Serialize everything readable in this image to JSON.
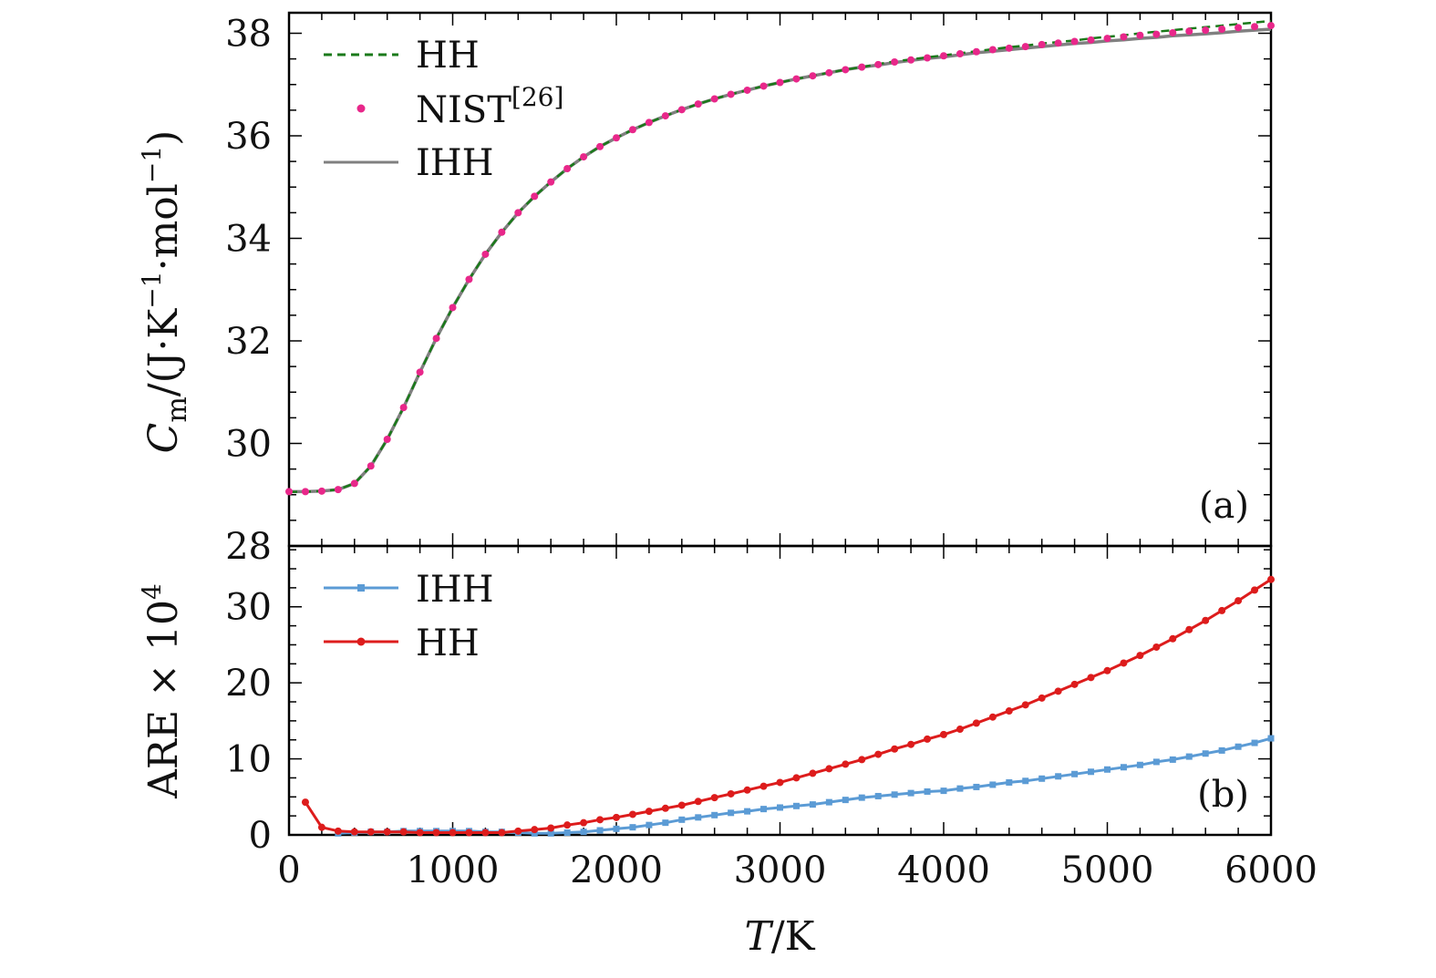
{
  "chart_data": [
    {
      "type": "line",
      "panel_label": "(a)",
      "ylabel": "C_m/(J·K^-1·mol^-1)",
      "ylabel_parts": {
        "c": "C",
        "sub": "m",
        "rest": "/(J·K",
        "exp1": "−1",
        "mid": "·mol",
        "exp2": "−1",
        "end": ")"
      },
      "xlim": [
        0,
        6000
      ],
      "ylim": [
        28,
        38.4
      ],
      "yticks": [
        "28",
        "30",
        "32",
        "34",
        "36",
        "38"
      ],
      "ytick_values": [
        28,
        30,
        32,
        34,
        36,
        38
      ],
      "legend_position": "top-left",
      "legend": [
        {
          "label": "HH",
          "style": "dashed",
          "color": "#1a7a1a"
        },
        {
          "label": "NIST",
          "sup": "[26]",
          "style": "markers",
          "color": "#e8278a"
        },
        {
          "label": "IHH",
          "style": "solid",
          "color": "#808080"
        }
      ],
      "x": [
        0,
        100,
        200,
        300,
        400,
        500,
        600,
        700,
        800,
        900,
        1000,
        1100,
        1200,
        1300,
        1400,
        1500,
        1600,
        1700,
        1800,
        1900,
        2000,
        2100,
        2200,
        2300,
        2400,
        2500,
        2600,
        2700,
        2800,
        2900,
        3000,
        3100,
        3200,
        3300,
        3400,
        3500,
        3600,
        3700,
        3800,
        3900,
        4000,
        4100,
        4200,
        4300,
        4400,
        4500,
        4600,
        4700,
        4800,
        4900,
        5000,
        5100,
        5200,
        5300,
        5400,
        5500,
        5600,
        5700,
        5800,
        5900,
        6000
      ],
      "series": [
        {
          "name": "NIST[26]",
          "values": [
            29.06,
            29.06,
            29.07,
            29.1,
            29.22,
            29.56,
            30.08,
            30.7,
            31.39,
            32.05,
            32.65,
            33.2,
            33.69,
            34.12,
            34.5,
            34.82,
            35.1,
            35.36,
            35.59,
            35.79,
            35.96,
            36.12,
            36.26,
            36.39,
            36.51,
            36.62,
            36.72,
            36.81,
            36.89,
            36.97,
            37.04,
            37.11,
            37.17,
            37.23,
            37.29,
            37.34,
            37.39,
            37.44,
            37.48,
            37.52,
            37.56,
            37.6,
            37.64,
            37.68,
            37.71,
            37.74,
            37.78,
            37.81,
            37.84,
            37.87,
            37.9,
            37.93,
            37.96,
            37.98,
            38.01,
            38.04,
            38.06,
            38.08,
            38.11,
            38.13,
            38.15
          ]
        },
        {
          "name": "HH",
          "values": [
            29.05,
            29.06,
            29.07,
            29.1,
            29.22,
            29.56,
            30.08,
            30.7,
            31.39,
            32.05,
            32.65,
            33.2,
            33.69,
            34.12,
            34.5,
            34.82,
            35.1,
            35.36,
            35.59,
            35.79,
            35.96,
            36.12,
            36.26,
            36.39,
            36.51,
            36.62,
            36.72,
            36.81,
            36.89,
            36.97,
            37.04,
            37.11,
            37.17,
            37.23,
            37.29,
            37.34,
            37.4,
            37.45,
            37.49,
            37.53,
            37.57,
            37.61,
            37.65,
            37.69,
            37.73,
            37.76,
            37.8,
            37.83,
            37.86,
            37.9,
            37.93,
            37.96,
            38.0,
            38.03,
            38.06,
            38.09,
            38.12,
            38.15,
            38.18,
            38.21,
            38.24
          ]
        },
        {
          "name": "IHH",
          "values": [
            29.06,
            29.06,
            29.07,
            29.1,
            29.22,
            29.56,
            30.08,
            30.7,
            31.39,
            32.05,
            32.65,
            33.2,
            33.69,
            34.12,
            34.5,
            34.82,
            35.1,
            35.36,
            35.59,
            35.79,
            35.96,
            36.12,
            36.26,
            36.39,
            36.51,
            36.62,
            36.72,
            36.81,
            36.89,
            36.97,
            37.04,
            37.11,
            37.17,
            37.23,
            37.29,
            37.34,
            37.38,
            37.43,
            37.47,
            37.51,
            37.54,
            37.58,
            37.62,
            37.65,
            37.68,
            37.71,
            37.74,
            37.77,
            37.8,
            37.82,
            37.85,
            37.87,
            37.9,
            37.92,
            37.95,
            37.97,
            37.99,
            38.01,
            38.04,
            38.06,
            38.08
          ]
        }
      ]
    },
    {
      "type": "line",
      "panel_label": "(b)",
      "ylabel": "ARE×10^4",
      "ylabel_parts": {
        "base": "ARE × 10",
        "exp": "4"
      },
      "xlabel": "T/K",
      "xlabel_parts": {
        "t": "T",
        "rest": "/K"
      },
      "xlim": [
        0,
        6000
      ],
      "ylim": [
        0,
        38
      ],
      "xticks": [
        "0",
        "1000",
        "2000",
        "3000",
        "4000",
        "5000",
        "6000"
      ],
      "xtick_values": [
        0,
        1000,
        2000,
        3000,
        4000,
        5000,
        6000
      ],
      "yticks": [
        "0",
        "10",
        "20",
        "30"
      ],
      "ytick_values": [
        0,
        10,
        20,
        30
      ],
      "legend_position": "top-left",
      "legend": [
        {
          "label": "IHH",
          "marker": "square",
          "color": "#5b9bd5"
        },
        {
          "label": "HH",
          "marker": "circle",
          "color": "#dd1c1c"
        }
      ],
      "x_ihh": [
        300,
        400,
        500,
        600,
        700,
        800,
        900,
        1000,
        1100,
        1200,
        1300,
        1400,
        1500,
        1600,
        1700,
        1800,
        1900,
        2000,
        2100,
        2200,
        2300,
        2400,
        2500,
        2600,
        2700,
        2800,
        2900,
        3000,
        3100,
        3200,
        3300,
        3400,
        3500,
        3600,
        3700,
        3800,
        3900,
        4000,
        4100,
        4200,
        4300,
        4400,
        4500,
        4600,
        4700,
        4800,
        4900,
        5000,
        5100,
        5200,
        5300,
        5400,
        5500,
        5600,
        5700,
        5800,
        5900,
        6000
      ],
      "x_hh": [
        100,
        200,
        300,
        400,
        500,
        600,
        700,
        800,
        900,
        1000,
        1100,
        1200,
        1300,
        1400,
        1500,
        1600,
        1700,
        1800,
        1900,
        2000,
        2100,
        2200,
        2300,
        2400,
        2500,
        2600,
        2700,
        2800,
        2900,
        3000,
        3100,
        3200,
        3300,
        3400,
        3500,
        3600,
        3700,
        3800,
        3900,
        4000,
        4100,
        4200,
        4300,
        4400,
        4500,
        4600,
        4700,
        4800,
        4900,
        5000,
        5100,
        5200,
        5300,
        5400,
        5500,
        5600,
        5700,
        5800,
        5900,
        6000
      ],
      "series": [
        {
          "name": "IHH",
          "values": [
            0.2,
            0.3,
            0.4,
            0.4,
            0.5,
            0.5,
            0.5,
            0.5,
            0.5,
            0.4,
            0.4,
            0.3,
            0.2,
            0.2,
            0.3,
            0.4,
            0.6,
            0.8,
            1.0,
            1.3,
            1.6,
            2.0,
            2.3,
            2.6,
            2.9,
            3.1,
            3.4,
            3.6,
            3.8,
            4.0,
            4.3,
            4.6,
            4.9,
            5.1,
            5.3,
            5.5,
            5.7,
            5.8,
            6.1,
            6.3,
            6.6,
            6.9,
            7.1,
            7.4,
            7.7,
            8.0,
            8.3,
            8.6,
            8.9,
            9.2,
            9.6,
            9.9,
            10.3,
            10.7,
            11.1,
            11.6,
            12.1,
            12.7
          ]
        },
        {
          "name": "HH",
          "values": [
            4.3,
            1.0,
            0.5,
            0.4,
            0.4,
            0.4,
            0.4,
            0.3,
            0.3,
            0.3,
            0.3,
            0.3,
            0.3,
            0.5,
            0.7,
            0.9,
            1.3,
            1.6,
            2.0,
            2.3,
            2.7,
            3.1,
            3.5,
            3.9,
            4.4,
            4.9,
            5.4,
            5.9,
            6.4,
            6.9,
            7.5,
            8.1,
            8.7,
            9.3,
            9.9,
            10.6,
            11.3,
            11.9,
            12.6,
            13.2,
            13.9,
            14.7,
            15.5,
            16.3,
            17.1,
            18.0,
            18.9,
            19.8,
            20.7,
            21.6,
            22.6,
            23.6,
            24.7,
            25.8,
            27.0,
            28.2,
            29.5,
            30.8,
            32.2,
            33.6
          ]
        }
      ]
    }
  ]
}
